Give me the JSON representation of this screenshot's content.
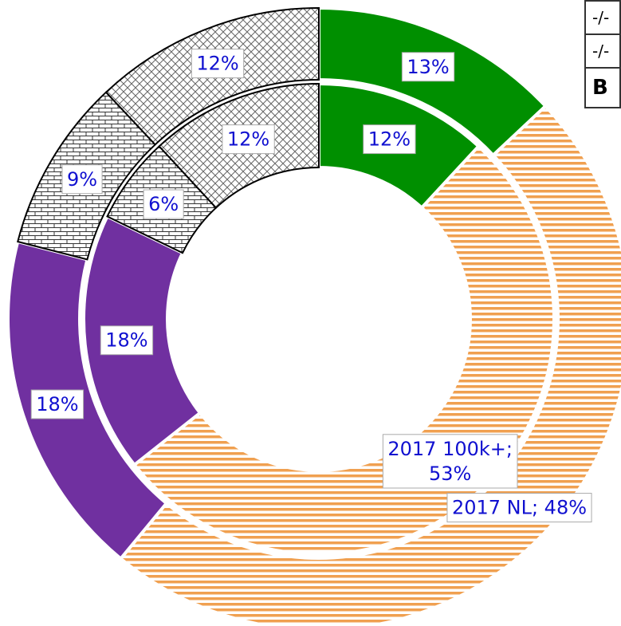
{
  "chart_data": {
    "type": "donut",
    "series": [
      {
        "name": "2017 NL",
        "values": [
          13,
          48,
          18,
          9,
          12
        ],
        "value_labels": [
          "13%",
          "2017 NL; 48%",
          "18%",
          "9%",
          "12%"
        ],
        "colors": [
          "#008f00",
          "#f0a050",
          "#7030a0",
          "#333333",
          "#666666"
        ],
        "patterns": [
          "solid",
          "hstripe",
          "solid",
          "brick",
          "cross"
        ]
      },
      {
        "name": "2017 100k+",
        "values": [
          12,
          53,
          18,
          6,
          12
        ],
        "value_labels": [
          "12%",
          "2017 100k+; 53%",
          "18%",
          "6%",
          "12%"
        ],
        "colors": [
          "#008f00",
          "#f0a050",
          "#7030a0",
          "#333333",
          "#666666"
        ],
        "patterns": [
          "solid",
          "hstripe",
          "solid",
          "brick",
          "cross"
        ]
      }
    ]
  },
  "table": {
    "rows": [
      "-/-",
      "-/-",
      "B"
    ]
  }
}
